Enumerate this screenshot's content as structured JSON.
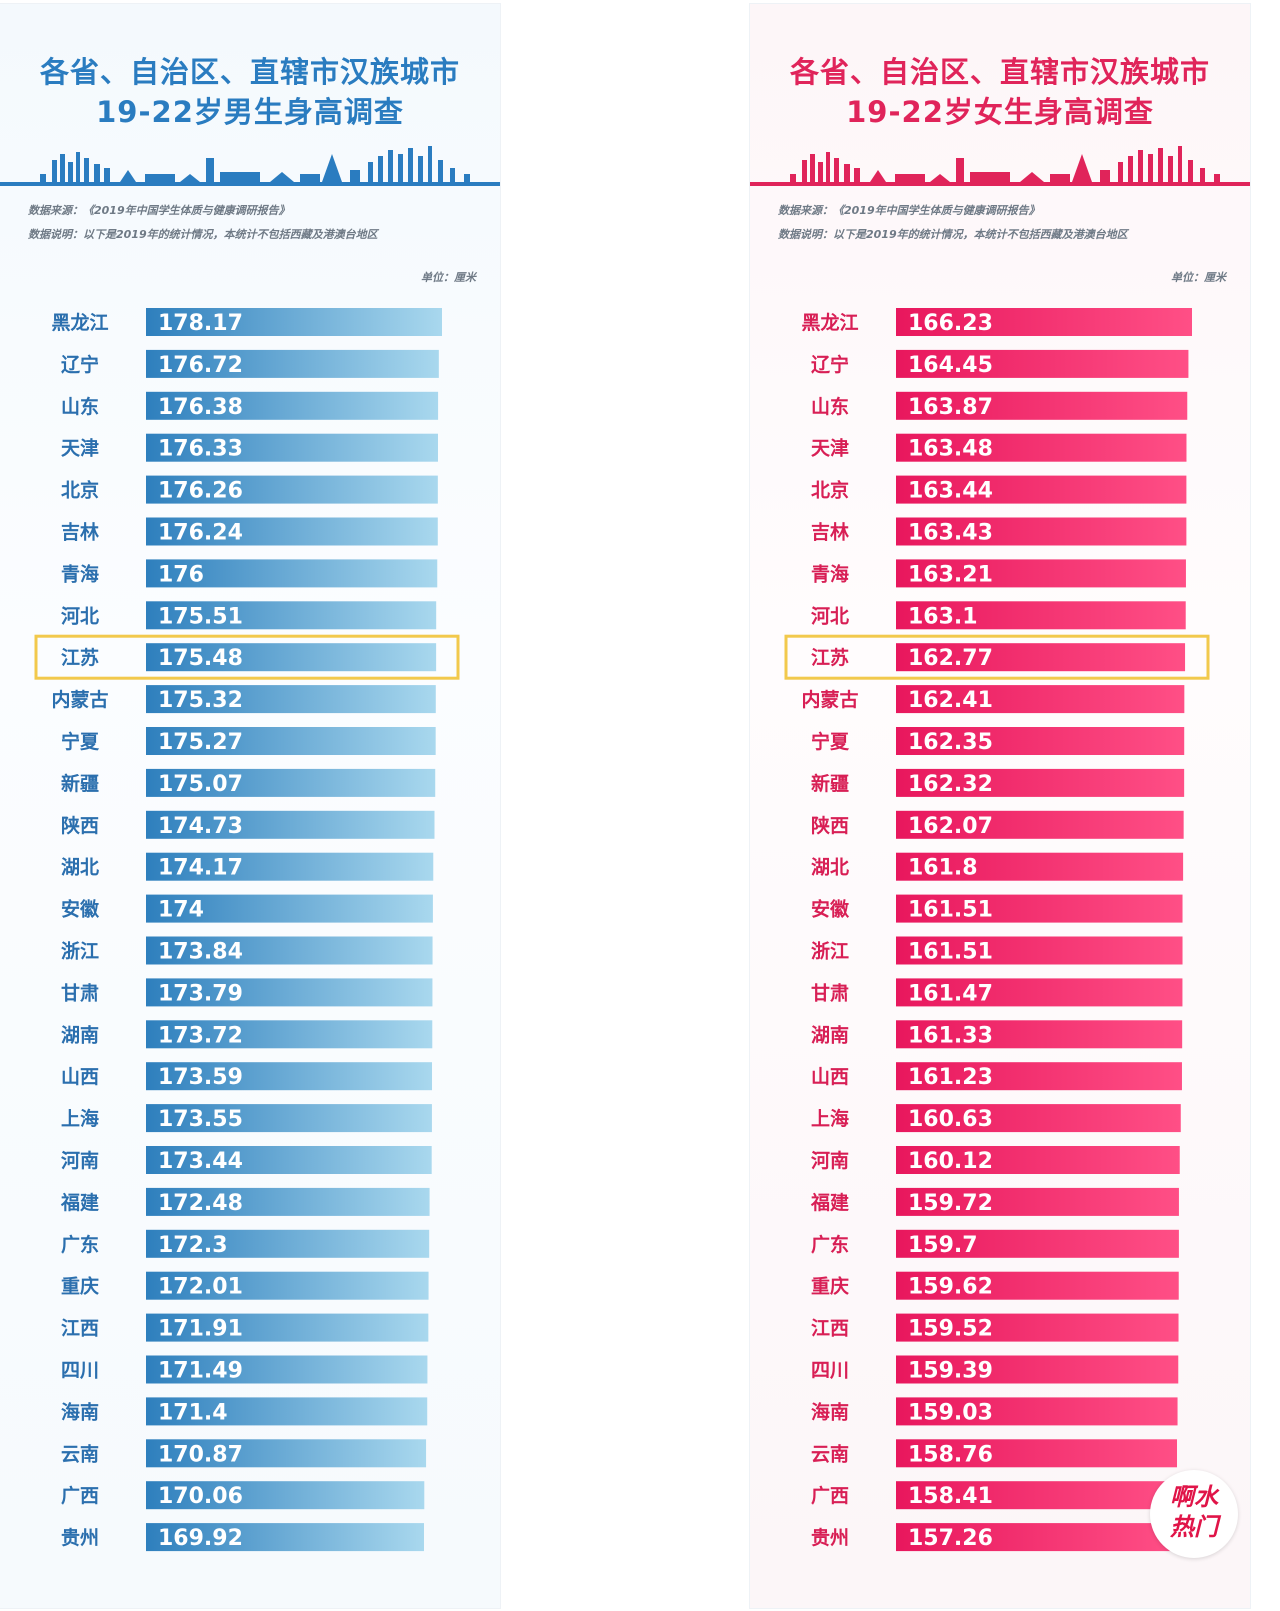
{
  "colors": {
    "male_title": "#2a7cc0",
    "male_bar": "#2e7fbd",
    "male_bar_end": "#a9d8ee",
    "female_title": "#e0245a",
    "female_bar": "#e8175d",
    "female_bar_end": "#ff4f86",
    "highlight": "#f2c94c",
    "label_male": "#2b6fae",
    "label_female": "#d81f55"
  },
  "male_panel": {
    "title_line1": "各省、自治区、直辖市汉族城市",
    "title_line2": "19-22岁男生身高调查",
    "source": "数据来源：《2019年中国学生体质与健康调研报告》",
    "note": "数据说明：以下是2019年的统计情况，本统计不包括西藏及港澳台地区",
    "unit": "单位：厘米"
  },
  "female_panel": {
    "title_line1": "各省、自治区、直辖市汉族城市",
    "title_line2": "19-22岁女生身高调查",
    "source": "数据来源：《2019年中国学生体质与健康调研报告》",
    "note": "数据说明：以下是2019年的统计情况，本统计不包括西藏及港澳台地区",
    "unit": "单位：厘米"
  },
  "badge": {
    "line1": "啊水",
    "line2": "热门"
  },
  "chart_data": [
    {
      "type": "bar",
      "orientation": "horizontal",
      "title": "各省、自治区、直辖市汉族城市19-22岁男生身高调查",
      "unit": "单位：厘米",
      "highlight": "江苏",
      "categories": [
        "黑龙江",
        "辽宁",
        "山东",
        "天津",
        "北京",
        "吉林",
        "青海",
        "河北",
        "江苏",
        "内蒙古",
        "宁夏",
        "新疆",
        "陕西",
        "湖北",
        "安徽",
        "浙江",
        "甘肃",
        "湖南",
        "山西",
        "上海",
        "河南",
        "福建",
        "广东",
        "重庆",
        "江西",
        "四川",
        "海南",
        "云南",
        "广西",
        "贵州"
      ],
      "labels": [
        "178.17",
        "176.72",
        "176.38",
        "176.33",
        "176.26",
        "176.24",
        "176",
        "175.51",
        "175.48",
        "175.32",
        "175.27",
        "175.07",
        "174.73",
        "174.17",
        "174",
        "173.84",
        "173.79",
        "173.72",
        "173.59",
        "173.55",
        "173.44",
        "172.48",
        "172.3",
        "172.01",
        "171.91",
        "171.49",
        "171.4",
        "170.87",
        "170.06",
        "169.92"
      ],
      "values": [
        178.17,
        176.72,
        176.38,
        176.33,
        176.26,
        176.24,
        176,
        175.51,
        175.48,
        175.32,
        175.27,
        175.07,
        174.73,
        174.17,
        174,
        173.84,
        173.79,
        173.72,
        173.59,
        173.55,
        173.44,
        172.48,
        172.3,
        172.01,
        171.91,
        171.49,
        171.4,
        170.87,
        170.06,
        169.92
      ]
    },
    {
      "type": "bar",
      "orientation": "horizontal",
      "title": "各省、自治区、直辖市汉族城市19-22岁女生身高调查",
      "unit": "单位：厘米",
      "highlight": "江苏",
      "categories": [
        "黑龙江",
        "辽宁",
        "山东",
        "天津",
        "北京",
        "吉林",
        "青海",
        "河北",
        "江苏",
        "内蒙古",
        "宁夏",
        "新疆",
        "陕西",
        "湖北",
        "安徽",
        "浙江",
        "甘肃",
        "湖南",
        "山西",
        "上海",
        "河南",
        "福建",
        "广东",
        "重庆",
        "江西",
        "四川",
        "海南",
        "云南",
        "广西",
        "贵州"
      ],
      "labels": [
        "166.23",
        "164.45",
        "163.87",
        "163.48",
        "163.44",
        "163.43",
        "163.21",
        "163.1",
        "162.77",
        "162.41",
        "162.35",
        "162.32",
        "162.07",
        "161.8",
        "161.51",
        "161.51",
        "161.47",
        "161.33",
        "161.23",
        "160.63",
        "160.12",
        "159.72",
        "159.7",
        "159.62",
        "159.52",
        "159.39",
        "159.03",
        "158.76",
        "158.41",
        "157.26"
      ],
      "values": [
        166.23,
        164.45,
        163.87,
        163.48,
        163.44,
        163.43,
        163.21,
        163.1,
        162.77,
        162.41,
        162.35,
        162.32,
        162.07,
        161.8,
        161.51,
        161.51,
        161.47,
        161.33,
        161.23,
        160.63,
        160.12,
        159.72,
        159.7,
        159.62,
        159.52,
        159.39,
        159.03,
        158.76,
        158.41,
        157.26
      ]
    }
  ]
}
